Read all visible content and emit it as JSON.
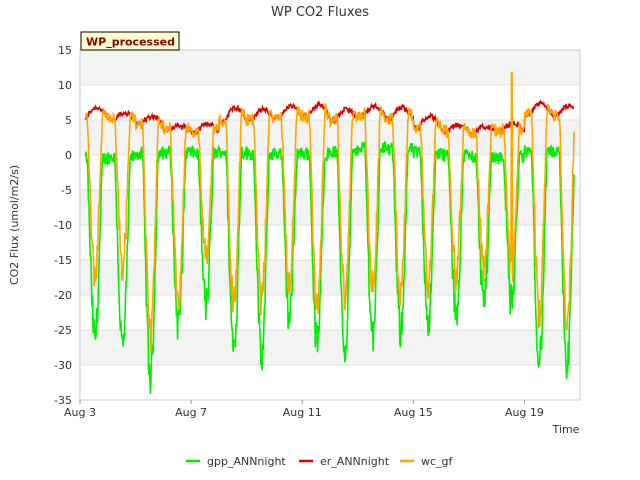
{
  "chart_data": {
    "type": "line",
    "title": "WP CO2 Fluxes",
    "site_label": "WP_processed",
    "xlabel": "Time",
    "ylabel": "CO2 Flux (umol/m2/s)",
    "ylim": [
      -35,
      15
    ],
    "yticks": [
      -35,
      -30,
      -25,
      -20,
      -15,
      -10,
      -5,
      0,
      5,
      10,
      15
    ],
    "xlim": [
      3.0,
      21.0
    ],
    "xticks": [
      {
        "value": 3,
        "label": "Aug 3"
      },
      {
        "value": 7,
        "label": "Aug 7"
      },
      {
        "value": 11,
        "label": "Aug 11"
      },
      {
        "value": 15,
        "label": "Aug 15"
      },
      {
        "value": 19,
        "label": "Aug 19"
      }
    ],
    "x_unit": "day of August",
    "grid": "horizontal bands",
    "legend_position": "bottom",
    "series": [
      {
        "name": "gpp_ANNnight",
        "color": "#00ee00"
      },
      {
        "name": "er_ANNnight",
        "color": "#dd0000"
      },
      {
        "name": "wc_gf",
        "color": "#ffa500"
      }
    ],
    "daily": [
      {
        "day": 3,
        "gpp_min": -26,
        "gpp_night": -0.5,
        "er_night": 5.2,
        "er_day": 6.8,
        "wc_min": -17
      },
      {
        "day": 4,
        "gpp_min": -27.5,
        "gpp_night": -0.3,
        "er_night": 5.0,
        "er_day": 6.0,
        "wc_min": -16
      },
      {
        "day": 5,
        "gpp_min": -32,
        "gpp_night": 0.2,
        "er_night": 4.5,
        "er_day": 5.5,
        "wc_min": -26
      },
      {
        "day": 6,
        "gpp_min": -24,
        "gpp_night": 0.4,
        "er_night": 3.5,
        "er_day": 4.2,
        "wc_min": -20
      },
      {
        "day": 7,
        "gpp_min": -21.5,
        "gpp_night": 0.3,
        "er_night": 3.2,
        "er_day": 4.5,
        "wc_min": -15
      },
      {
        "day": 8,
        "gpp_min": -27.5,
        "gpp_night": 0.5,
        "er_night": 4.8,
        "er_day": 6.8,
        "wc_min": -21
      },
      {
        "day": 9,
        "gpp_min": -29,
        "gpp_night": 0.2,
        "er_night": 5.0,
        "er_day": 6.5,
        "wc_min": -21
      },
      {
        "day": 10,
        "gpp_min": -23,
        "gpp_night": 0.3,
        "er_night": 5.3,
        "er_day": 7.0,
        "wc_min": -18
      },
      {
        "day": 11,
        "gpp_min": -27,
        "gpp_night": 0.2,
        "er_night": 5.5,
        "er_day": 7.2,
        "wc_min": -22
      },
      {
        "day": 12,
        "gpp_min": -27.5,
        "gpp_night": 0.4,
        "er_night": 5.0,
        "er_day": 6.5,
        "wc_min": -20
      },
      {
        "day": 13,
        "gpp_min": -25.5,
        "gpp_night": 1.2,
        "er_night": 5.5,
        "er_day": 7.0,
        "wc_min": -19
      },
      {
        "day": 14,
        "gpp_min": -25,
        "gpp_night": 0.8,
        "er_night": 5.2,
        "er_day": 6.8,
        "wc_min": -20
      },
      {
        "day": 15,
        "gpp_min": -23.5,
        "gpp_night": 0.3,
        "er_night": 4.0,
        "er_day": 5.5,
        "wc_min": -18
      },
      {
        "day": 16,
        "gpp_min": -22.5,
        "gpp_night": 0.0,
        "er_night": 3.5,
        "er_day": 4.2,
        "wc_min": -17
      },
      {
        "day": 17,
        "gpp_min": -20.5,
        "gpp_night": -0.2,
        "er_night": 3.3,
        "er_day": 4.0,
        "wc_min": -16
      },
      {
        "day": 18,
        "gpp_min": -21,
        "gpp_night": -0.3,
        "er_night": 3.5,
        "er_day": 4.5,
        "wc_min": -17
      },
      {
        "day": 19,
        "gpp_min": -29.5,
        "gpp_night": 0.5,
        "er_night": 5.8,
        "er_day": 7.3,
        "wc_min": -23
      },
      {
        "day": 20,
        "gpp_min": -30,
        "gpp_night": 0.2,
        "er_night": 5.5,
        "er_day": 7.0,
        "wc_min": -24
      }
    ],
    "wc_spike": {
      "x": 18.55,
      "value": 11.8
    }
  }
}
